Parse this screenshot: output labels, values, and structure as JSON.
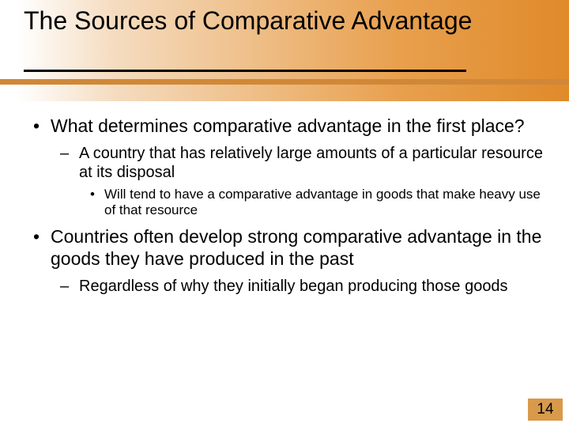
{
  "slide": {
    "title": "The Sources of Comparative Advantage",
    "background_gradient": [
      "#ffffff",
      "#f5dcc0",
      "#e8a04e",
      "#e08a2a"
    ],
    "accent_bar_color": "#d08838",
    "underline_color": "#000000",
    "title_fontsize": 32,
    "body_fontsize_lvl1": 23,
    "body_fontsize_lvl2": 20,
    "body_fontsize_lvl3": 17,
    "text_color": "#000000"
  },
  "bullets": {
    "b1": "What determines comparative advantage in the first place?",
    "b1_1": "A country that has relatively large amounts of a particular resource at its disposal",
    "b1_1_1": "Will tend to have a comparative advantage in goods that make heavy use of that resource",
    "b2": "Countries often develop strong comparative advantage in the goods they have produced in the past",
    "b2_1": "Regardless of why they initially began producing those goods"
  },
  "page_number": {
    "value": "14",
    "box_color": "#d89a4a",
    "fontsize": 19
  }
}
